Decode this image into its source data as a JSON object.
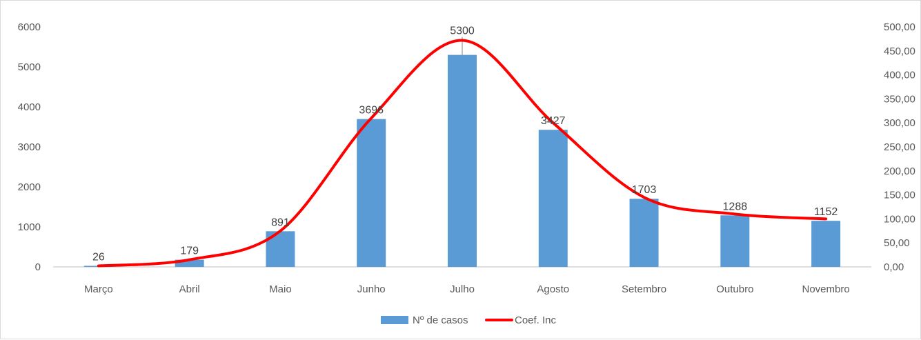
{
  "chart_data": {
    "type": "bar",
    "categories": [
      "Março",
      "Abril",
      "Maio",
      "Junho",
      "Julho",
      "Agosto",
      "Setembro",
      "Outubro",
      "Novembro"
    ],
    "series": [
      {
        "name": "Nº de casos",
        "type": "bar",
        "axis": "left",
        "values": [
          26,
          179,
          891,
          3696,
          5300,
          3427,
          1703,
          1288,
          1152
        ],
        "data_labels": [
          "26",
          "179",
          "891",
          "3696",
          "5300",
          "3427",
          "1703",
          "1288",
          "1152"
        ],
        "color": "#5b9bd5"
      },
      {
        "name": "Coef. Inc",
        "type": "line",
        "axis": "right",
        "smooth": true,
        "values": [
          2.2,
          15.0,
          75.0,
          310.0,
          472.0,
          300.0,
          145.0,
          110.0,
          100.0
        ],
        "color": "#ff0000"
      }
    ],
    "y_left": {
      "range": [
        0,
        6000
      ],
      "ticks": [
        "0",
        "1000",
        "2000",
        "3000",
        "4000",
        "5000",
        "6000"
      ]
    },
    "y_right": {
      "range": [
        0,
        500
      ],
      "ticks": [
        "0,00",
        "50,00",
        "100,00",
        "150,00",
        "200,00",
        "250,00",
        "300,00",
        "350,00",
        "400,00",
        "450,00",
        "500,00"
      ]
    },
    "grid": false,
    "legend": {
      "placement": "bottom"
    }
  }
}
